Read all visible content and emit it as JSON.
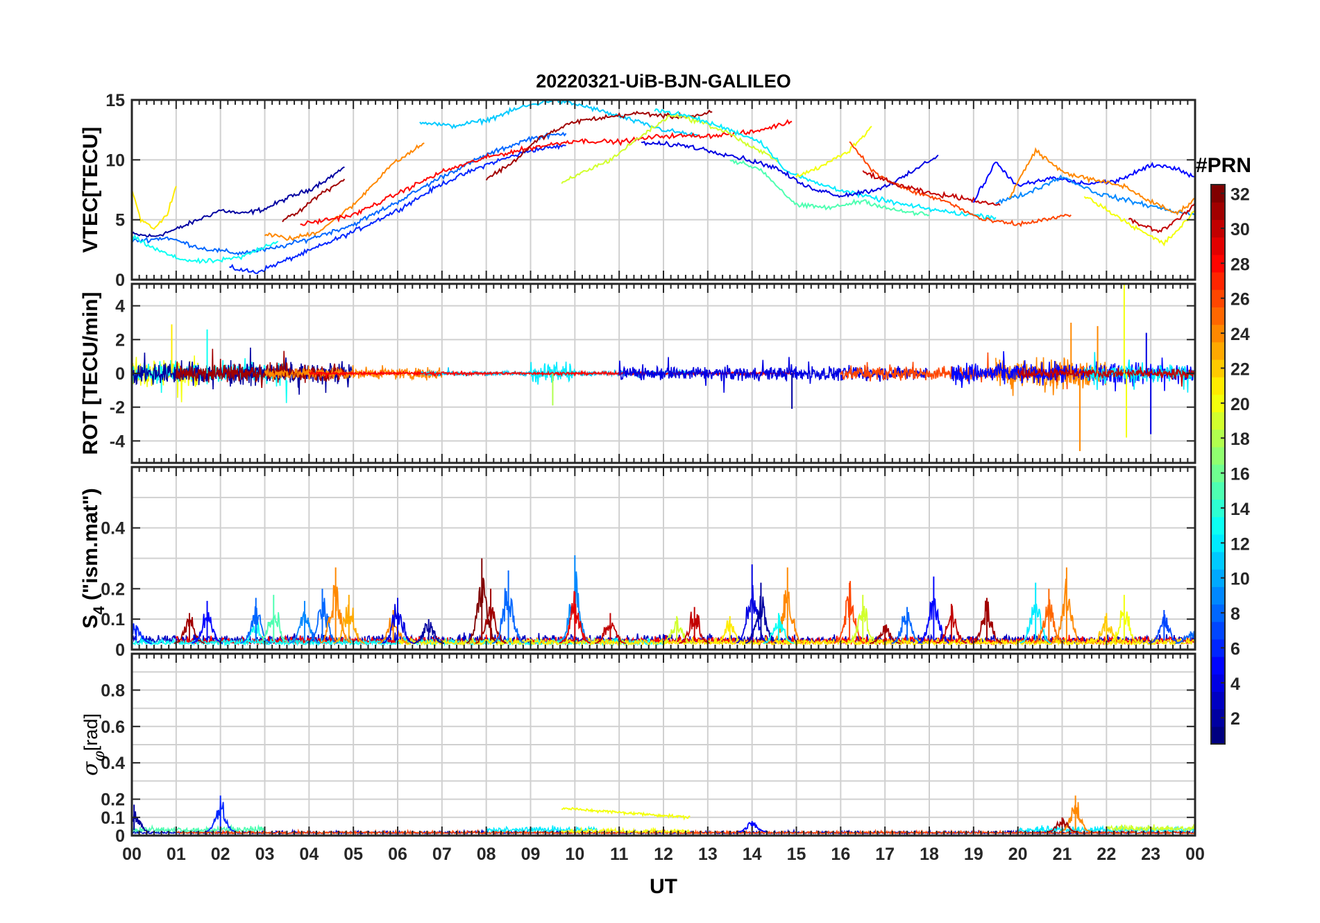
{
  "figure": {
    "title": "20220321-UiB-BJN-GALILEO",
    "xlabel": "UT",
    "x_ticks": [
      "00",
      "01",
      "02",
      "03",
      "04",
      "05",
      "06",
      "07",
      "08",
      "09",
      "10",
      "11",
      "12",
      "13",
      "14",
      "15",
      "16",
      "17",
      "18",
      "19",
      "20",
      "21",
      "22",
      "23",
      "00"
    ]
  },
  "colorbar": {
    "label": "#PRN",
    "range": [
      1,
      32
    ],
    "ticks": [
      "2",
      "4",
      "6",
      "8",
      "10",
      "12",
      "14",
      "16",
      "18",
      "20",
      "22",
      "24",
      "26",
      "28",
      "30",
      "32"
    ],
    "tick_values": [
      2,
      4,
      6,
      8,
      10,
      12,
      14,
      16,
      18,
      20,
      22,
      24,
      26,
      28,
      30,
      32
    ],
    "colormap": "jet",
    "jet_stops": [
      "#000080",
      "#0000ff",
      "#0080ff",
      "#00ffff",
      "#80ff80",
      "#ffff00",
      "#ff8000",
      "#ff0000",
      "#800000"
    ]
  },
  "chart_data": [
    {
      "type": "line",
      "panel": "vtec",
      "ylabel": "VTEC[TECU]",
      "xlim": [
        0,
        24
      ],
      "ylim": [
        0,
        15
      ],
      "yticks": [
        "0",
        "5",
        "10",
        "15"
      ],
      "ytick_values": [
        0,
        5,
        10,
        15
      ],
      "grid": true,
      "series": [
        {
          "prn": 2,
          "x": [
            0.0,
            0.5,
            1.0,
            1.5,
            2.0,
            2.5,
            3.0,
            3.5,
            4.0,
            4.5,
            4.8
          ],
          "y": [
            3.8,
            3.6,
            4.2,
            5.0,
            5.8,
            5.5,
            5.9,
            6.8,
            7.5,
            8.6,
            9.4
          ]
        },
        {
          "prn": 6,
          "x": [
            2.2,
            2.8,
            3.2,
            4.0,
            5.0,
            6.0,
            7.0,
            8.0,
            9.0,
            9.8
          ],
          "y": [
            1.0,
            0.6,
            1.2,
            2.4,
            4.0,
            5.8,
            8.0,
            9.6,
            10.8,
            11.2
          ]
        },
        {
          "prn": 8,
          "x": [
            0.0,
            0.8,
            1.6,
            2.4,
            3.2,
            4.0,
            5.0,
            6.0,
            7.0,
            8.0,
            9.0,
            9.8
          ],
          "y": [
            3.2,
            3.5,
            2.6,
            2.2,
            2.6,
            3.4,
            4.6,
            6.5,
            8.6,
            10.4,
            11.8,
            12.2
          ]
        },
        {
          "prn": 11,
          "x": [
            6.5,
            7.2,
            8.0,
            8.8,
            9.5,
            10.2,
            11.2,
            12.0,
            12.8
          ],
          "y": [
            13.2,
            12.8,
            13.3,
            14.4,
            15.0,
            14.5,
            13.4,
            12.5,
            12.0
          ]
        },
        {
          "prn": 13,
          "x": [
            0.0,
            0.5,
            1.0,
            1.5,
            2.0,
            2.5,
            3.0,
            3.3
          ],
          "y": [
            3.6,
            2.6,
            1.8,
            1.5,
            1.6,
            1.9,
            2.8,
            3.2
          ]
        },
        {
          "prn": 21,
          "x": [
            0.0,
            0.2,
            0.5,
            0.8,
            1.0
          ],
          "y": [
            7.6,
            5.0,
            4.2,
            5.5,
            7.8
          ]
        },
        {
          "prn": 24,
          "x": [
            3.0,
            3.6,
            4.2,
            5.0,
            5.8,
            6.6
          ],
          "y": [
            3.8,
            3.4,
            4.0,
            6.2,
            9.4,
            11.4
          ]
        },
        {
          "prn": 28,
          "x": [
            3.8,
            4.4,
            5.0,
            6.0,
            7.0,
            8.0,
            9.0,
            10.0,
            11.0,
            12.0,
            13.0,
            14.0,
            14.9
          ],
          "y": [
            4.6,
            5.0,
            5.4,
            7.2,
            9.0,
            10.2,
            11.0,
            11.6,
            11.5,
            12.0,
            12.0,
            12.3,
            13.2
          ]
        },
        {
          "prn": 31,
          "x": [
            3.4,
            3.8,
            4.2,
            4.8
          ],
          "y": [
            5.0,
            5.8,
            7.0,
            8.4
          ]
        },
        {
          "prn": 31,
          "x": [
            8.0,
            8.6,
            9.2,
            10.0,
            10.8,
            11.5,
            12.2,
            12.8,
            13.1
          ],
          "y": [
            8.4,
            9.8,
            11.8,
            13.2,
            13.6,
            13.9,
            13.6,
            13.7,
            14.0
          ]
        },
        {
          "prn": 19,
          "x": [
            9.7,
            10.2,
            10.8,
            11.5,
            12.2,
            12.8,
            13.5,
            14.0,
            14.6
          ],
          "y": [
            8.0,
            9.0,
            10.0,
            12.0,
            13.8,
            13.2,
            12.2,
            11.0,
            10.0
          ]
        },
        {
          "prn": 12,
          "x": [
            11.8,
            12.6,
            13.5,
            14.2,
            14.8,
            15.5,
            16.5,
            17.5,
            18.5,
            19.5
          ],
          "y": [
            14.2,
            13.6,
            12.5,
            11.5,
            9.0,
            8.0,
            7.0,
            6.2,
            5.6,
            5.2
          ]
        },
        {
          "prn": 15,
          "x": [
            13.5,
            14.2,
            15.0,
            15.8,
            16.5,
            17.2,
            18.0
          ],
          "y": [
            10.0,
            9.2,
            6.2,
            6.0,
            6.6,
            5.8,
            5.4
          ]
        },
        {
          "prn": 4,
          "x": [
            11.5,
            12.5,
            13.5,
            14.5,
            15.2,
            16.0,
            16.8,
            17.4,
            18.2
          ],
          "y": [
            11.4,
            11.2,
            10.4,
            9.4,
            7.8,
            7.0,
            7.5,
            8.5,
            10.4
          ]
        },
        {
          "prn": 20,
          "x": [
            15.0,
            15.6,
            16.2,
            16.7
          ],
          "y": [
            8.6,
            9.5,
            10.8,
            12.8
          ]
        },
        {
          "prn": 26,
          "x": [
            16.2,
            16.8,
            17.5,
            18.4,
            19.2,
            20.0,
            20.6,
            21.2
          ],
          "y": [
            11.5,
            8.8,
            7.5,
            6.5,
            5.0,
            4.6,
            5.0,
            5.4
          ]
        },
        {
          "prn": 30,
          "x": [
            16.5,
            17.2,
            18.0,
            18.8,
            19.6
          ],
          "y": [
            9.0,
            8.0,
            7.2,
            6.8,
            6.2
          ]
        },
        {
          "prn": 5,
          "x": [
            19.0,
            19.5,
            20.0,
            20.8,
            21.5,
            22.2,
            23.0,
            23.5,
            24.0
          ],
          "y": [
            6.5,
            9.8,
            7.8,
            8.5,
            8.0,
            8.2,
            9.5,
            9.4,
            8.6
          ]
        },
        {
          "prn": 9,
          "x": [
            19.5,
            20.2,
            21.0,
            21.8,
            22.6,
            23.4,
            24.0
          ],
          "y": [
            6.4,
            7.2,
            8.6,
            7.2,
            6.5,
            5.8,
            5.4
          ]
        },
        {
          "prn": 24,
          "x": [
            19.8,
            20.4,
            21.0,
            21.6,
            22.4,
            23.0,
            23.6,
            24.0
          ],
          "y": [
            6.8,
            10.8,
            9.0,
            8.4,
            7.8,
            6.5,
            5.5,
            6.8
          ]
        },
        {
          "prn": 20,
          "x": [
            21.5,
            22.2,
            22.8,
            23.3,
            23.7,
            24.0
          ],
          "y": [
            7.0,
            5.4,
            4.0,
            3.0,
            4.5,
            5.8
          ]
        },
        {
          "prn": 30,
          "x": [
            22.5,
            23.2,
            23.8,
            24.0
          ],
          "y": [
            5.0,
            4.0,
            5.6,
            6.4
          ]
        }
      ]
    },
    {
      "type": "line",
      "panel": "rot",
      "ylabel": "ROT [TECU/min]",
      "xlim": [
        0,
        24
      ],
      "ylim": [
        -5.3,
        5.3
      ],
      "yticks": [
        "-4",
        "-2",
        "0",
        "2",
        "4"
      ],
      "ytick_values": [
        -4,
        -2,
        0,
        2,
        4
      ],
      "grid": true,
      "noise": [
        {
          "prn": 20,
          "x0": 0.0,
          "x1": 1.5,
          "amp": 1.2
        },
        {
          "prn": 13,
          "x0": 0.0,
          "x1": 3.5,
          "amp": 0.9
        },
        {
          "prn": 2,
          "x0": 0.0,
          "x1": 5.0,
          "amp": 0.9
        },
        {
          "prn": 31,
          "x0": 1.0,
          "x1": 4.8,
          "amp": 0.8
        },
        {
          "prn": 24,
          "x0": 3.0,
          "x1": 7.0,
          "amp": 0.5
        },
        {
          "prn": 11,
          "x0": 6.5,
          "x1": 13.0,
          "amp": 0.2
        },
        {
          "prn": 12,
          "x0": 9.0,
          "x1": 10.0,
          "amp": 0.9
        },
        {
          "prn": 28,
          "x0": 4.0,
          "x1": 15.0,
          "amp": 0.12
        },
        {
          "prn": 4,
          "x0": 11.0,
          "x1": 18.0,
          "amp": 0.6
        },
        {
          "prn": 26,
          "x0": 16.0,
          "x1": 21.5,
          "amp": 0.6
        },
        {
          "prn": 24,
          "x0": 19.5,
          "x1": 22.0,
          "amp": 1.3
        },
        {
          "prn": 5,
          "x0": 18.5,
          "x1": 24.0,
          "amp": 0.9
        },
        {
          "prn": 12,
          "x0": 21.5,
          "x1": 24.0,
          "amp": 0.8
        },
        {
          "prn": 30,
          "x0": 20.0,
          "x1": 24.0,
          "amp": 0.4
        }
      ],
      "spikes": [
        {
          "prn": 24,
          "x": 21.4,
          "y": -4.6
        },
        {
          "prn": 24,
          "x": 21.2,
          "y": 3.0
        },
        {
          "prn": 24,
          "x": 21.8,
          "y": 2.8
        },
        {
          "prn": 20,
          "x": 22.4,
          "y": 5.3
        },
        {
          "prn": 20,
          "x": 22.45,
          "y": -3.8
        },
        {
          "prn": 4,
          "x": 23.0,
          "y": -3.6
        },
        {
          "prn": 4,
          "x": 22.9,
          "y": 2.4
        },
        {
          "prn": 13,
          "x": 1.7,
          "y": 2.6
        },
        {
          "prn": 21,
          "x": 0.9,
          "y": 2.9
        },
        {
          "prn": 2,
          "x": 14.9,
          "y": -2.1
        },
        {
          "prn": 18,
          "x": 9.5,
          "y": -1.9
        }
      ]
    },
    {
      "type": "line",
      "panel": "s4",
      "ylabel": "S4 (\"ism.mat\")",
      "ylabel_main": "S",
      "ylabel_sub": "4",
      "ylabel_rest": " (\"ism.mat\")",
      "xlim": [
        0,
        24
      ],
      "ylim": [
        0,
        0.6
      ],
      "yticks": [
        "0",
        "0.1",
        "0.2",
        "0.4"
      ],
      "ytick_values": [
        0,
        0.1,
        0.2,
        0.4
      ],
      "grid_values": [
        0.1,
        0.2,
        0.3,
        0.4,
        0.5
      ],
      "grid": true,
      "baseline": [
        {
          "prn": 3,
          "x0": 0.0,
          "x1": 24.0,
          "amp": 0.04
        },
        {
          "prn": 28,
          "x0": 1.0,
          "x1": 24.0,
          "amp": 0.035
        },
        {
          "prn": 13,
          "x0": 0.0,
          "x1": 12.0,
          "amp": 0.03
        },
        {
          "prn": 21,
          "x0": 6.0,
          "x1": 24.0,
          "amp": 0.03
        }
      ],
      "bursts": [
        {
          "prn": 6,
          "x": 0.1,
          "h": 0.08
        },
        {
          "prn": 31,
          "x": 1.3,
          "h": 0.12
        },
        {
          "prn": 5,
          "x": 1.7,
          "h": 0.16
        },
        {
          "prn": 13,
          "x": 2.8,
          "h": 0.09
        },
        {
          "prn": 8,
          "x": 2.8,
          "h": 0.17
        },
        {
          "prn": 15,
          "x": 3.2,
          "h": 0.18
        },
        {
          "prn": 9,
          "x": 3.9,
          "h": 0.16
        },
        {
          "prn": 8,
          "x": 4.3,
          "h": 0.2
        },
        {
          "prn": 24,
          "x": 4.6,
          "h": 0.27
        },
        {
          "prn": 23,
          "x": 4.9,
          "h": 0.18
        },
        {
          "prn": 24,
          "x": 5.9,
          "h": 0.13
        },
        {
          "prn": 4,
          "x": 6.0,
          "h": 0.17
        },
        {
          "prn": 2,
          "x": 6.7,
          "h": 0.1
        },
        {
          "prn": 32,
          "x": 7.9,
          "h": 0.3
        },
        {
          "prn": 31,
          "x": 8.1,
          "h": 0.2
        },
        {
          "prn": 8,
          "x": 8.5,
          "h": 0.26
        },
        {
          "prn": 9,
          "x": 10.0,
          "h": 0.31
        },
        {
          "prn": 29,
          "x": 10.0,
          "h": 0.19
        },
        {
          "prn": 30,
          "x": 10.8,
          "h": 0.12
        },
        {
          "prn": 19,
          "x": 12.3,
          "h": 0.11
        },
        {
          "prn": 30,
          "x": 12.7,
          "h": 0.14
        },
        {
          "prn": 21,
          "x": 13.5,
          "h": 0.11
        },
        {
          "prn": 4,
          "x": 14.0,
          "h": 0.28
        },
        {
          "prn": 2,
          "x": 14.2,
          "h": 0.22
        },
        {
          "prn": 24,
          "x": 14.8,
          "h": 0.27
        },
        {
          "prn": 13,
          "x": 14.6,
          "h": 0.12
        },
        {
          "prn": 26,
          "x": 16.2,
          "h": 0.22
        },
        {
          "prn": 19,
          "x": 16.5,
          "h": 0.18
        },
        {
          "prn": 31,
          "x": 17.0,
          "h": 0.08
        },
        {
          "prn": 8,
          "x": 17.5,
          "h": 0.14
        },
        {
          "prn": 5,
          "x": 18.1,
          "h": 0.24
        },
        {
          "prn": 30,
          "x": 18.5,
          "h": 0.15
        },
        {
          "prn": 31,
          "x": 19.3,
          "h": 0.17
        },
        {
          "prn": 12,
          "x": 20.4,
          "h": 0.22
        },
        {
          "prn": 25,
          "x": 20.7,
          "h": 0.2
        },
        {
          "prn": 24,
          "x": 21.1,
          "h": 0.27
        },
        {
          "prn": 22,
          "x": 22.0,
          "h": 0.12
        },
        {
          "prn": 20,
          "x": 22.4,
          "h": 0.18
        },
        {
          "prn": 7,
          "x": 23.3,
          "h": 0.13
        },
        {
          "prn": 8,
          "x": 23.9,
          "h": 0.06
        }
      ]
    },
    {
      "type": "line",
      "panel": "sigma_phi",
      "ylabel": "σφ[rad]",
      "ylabel_main": "σ",
      "ylabel_sub": "φ",
      "ylabel_rest": "[rad]",
      "xlim": [
        0,
        24
      ],
      "ylim": [
        0,
        1.0
      ],
      "yticks": [
        "0",
        "0.1",
        "0.2",
        "0.4",
        "0.6",
        "0.8"
      ],
      "ytick_values": [
        0,
        0.1,
        0.2,
        0.4,
        0.6,
        0.8
      ],
      "grid_values": [
        0.1,
        0.2,
        0.3,
        0.4,
        0.5,
        0.6,
        0.7,
        0.8,
        0.9
      ],
      "grid": true,
      "baseline": [
        {
          "prn": 3,
          "x0": 0.0,
          "x1": 24.0,
          "amp": 0.02
        },
        {
          "prn": 26,
          "x0": 1.0,
          "x1": 24.0,
          "amp": 0.02
        },
        {
          "prn": 15,
          "x0": 0.0,
          "x1": 3.0,
          "amp": 0.04
        },
        {
          "prn": 12,
          "x0": 8.0,
          "x1": 10.5,
          "amp": 0.04
        },
        {
          "prn": 12,
          "x0": 20.0,
          "x1": 24.0,
          "amp": 0.04
        },
        {
          "prn": 20,
          "x0": 9.7,
          "x1": 12.6,
          "amp": 0.03
        },
        {
          "prn": 19,
          "x0": 22.0,
          "x1": 24.0,
          "amp": 0.05
        }
      ],
      "plateaus": [
        {
          "prn": 20,
          "x0": 9.7,
          "x1": 12.6,
          "y0": 0.15,
          "y1": 0.1
        }
      ],
      "bursts": [
        {
          "prn": 2,
          "x": 0.05,
          "h": 0.17
        },
        {
          "prn": 6,
          "x": 2.0,
          "h": 0.22
        },
        {
          "prn": 24,
          "x": 21.3,
          "h": 0.22
        },
        {
          "prn": 31,
          "x": 21.0,
          "h": 0.1
        },
        {
          "prn": 5,
          "x": 14.0,
          "h": 0.08
        }
      ]
    }
  ]
}
